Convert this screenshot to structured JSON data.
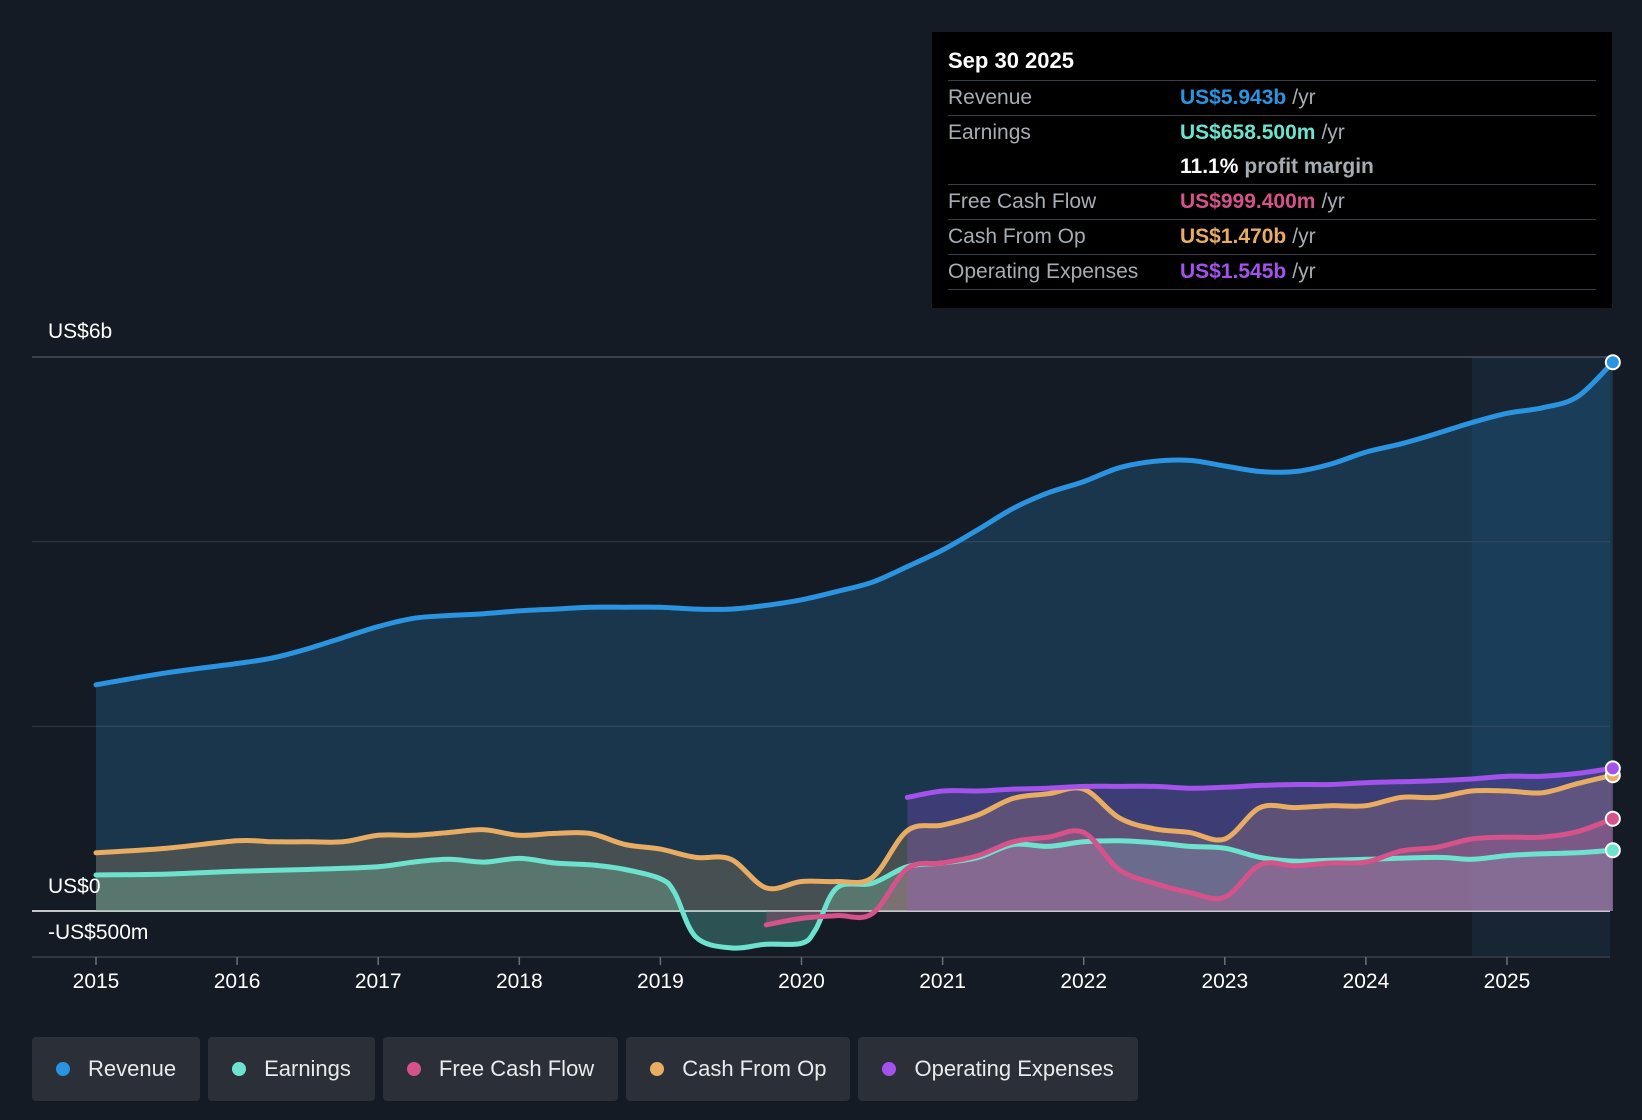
{
  "tooltip": {
    "date": "Sep 30 2025",
    "rows": [
      {
        "label": "Revenue",
        "value": "US$5.943b",
        "unit": "/yr",
        "color": "#2a94e0"
      },
      {
        "label": "Earnings",
        "value": "US$658.500m",
        "unit": "/yr",
        "color": "#6de3cf"
      },
      {
        "label": "",
        "value": "11.1%",
        "unit": "profit margin",
        "color": "#ffffff"
      },
      {
        "label": "Free Cash Flow",
        "value": "US$999.400m",
        "unit": "/yr",
        "color": "#d5528a"
      },
      {
        "label": "Cash From Op",
        "value": "US$1.470b",
        "unit": "/yr",
        "color": "#e8ac62"
      },
      {
        "label": "Operating Expenses",
        "value": "US$1.545b",
        "unit": "/yr",
        "color": "#a452ec"
      }
    ]
  },
  "legend": [
    {
      "label": "Revenue",
      "color": "#2a94e0"
    },
    {
      "label": "Earnings",
      "color": "#6de3cf"
    },
    {
      "label": "Free Cash Flow",
      "color": "#d5528a"
    },
    {
      "label": "Cash From Op",
      "color": "#e8ac62"
    },
    {
      "label": "Operating Expenses",
      "color": "#a452ec"
    }
  ],
  "chart_data": {
    "type": "line",
    "title": "",
    "xlabel": "",
    "ylabel": "",
    "ylim": [
      -500,
      6000
    ],
    "xlim": [
      2014.55,
      2025.75
    ],
    "y_tick_labels": [
      "US$6b",
      "US$0",
      "-US$500m"
    ],
    "x_ticks": [
      2015,
      2016,
      2017,
      2018,
      2019,
      2020,
      2021,
      2022,
      2023,
      2024,
      2025
    ],
    "x_tick_labels": [
      "2015",
      "2016",
      "2017",
      "2018",
      "2019",
      "2020",
      "2021",
      "2022",
      "2023",
      "2024",
      "2025"
    ],
    "highlight_from": 2024.75,
    "series": [
      {
        "name": "Revenue",
        "color": "#2a94e0",
        "x": [
          2015,
          2015.5,
          2016,
          2016.25,
          2016.5,
          2016.75,
          2017,
          2017.25,
          2017.5,
          2017.75,
          2018,
          2018.25,
          2018.5,
          2018.75,
          2019,
          2019.25,
          2019.5,
          2019.75,
          2020,
          2020.25,
          2020.5,
          2020.75,
          2021,
          2021.25,
          2021.5,
          2021.75,
          2022,
          2022.25,
          2022.5,
          2022.75,
          2023,
          2023.25,
          2023.5,
          2023.75,
          2024,
          2024.25,
          2024.5,
          2024.75,
          2025,
          2025.25,
          2025.5,
          2025.75
        ],
        "y": [
          2450,
          2580,
          2680,
          2740,
          2840,
          2960,
          3080,
          3170,
          3200,
          3220,
          3250,
          3270,
          3290,
          3290,
          3290,
          3270,
          3270,
          3310,
          3370,
          3460,
          3560,
          3730,
          3910,
          4130,
          4360,
          4530,
          4650,
          4800,
          4870,
          4880,
          4820,
          4760,
          4760,
          4840,
          4970,
          5060,
          5170,
          5290,
          5390,
          5450,
          5570,
          5943
        ]
      },
      {
        "name": "Earnings",
        "color": "#6de3cf",
        "x": [
          2015,
          2015.5,
          2016,
          2016.5,
          2017,
          2017.25,
          2017.5,
          2017.75,
          2018,
          2018.25,
          2018.5,
          2018.75,
          2019,
          2019.1,
          2019.25,
          2019.5,
          2019.75,
          2020,
          2020.1,
          2020.25,
          2020.5,
          2020.75,
          2021,
          2021.25,
          2021.5,
          2021.75,
          2022,
          2022.25,
          2022.5,
          2022.75,
          2023,
          2023.25,
          2023.5,
          2023.75,
          2024,
          2024.5,
          2024.75,
          2025,
          2025.25,
          2025.5,
          2025.75
        ],
        "y": [
          390,
          400,
          430,
          450,
          480,
          530,
          560,
          530,
          570,
          520,
          500,
          450,
          350,
          200,
          -280,
          -400,
          -360,
          -350,
          -200,
          250,
          300,
          480,
          520,
          580,
          720,
          700,
          750,
          760,
          740,
          700,
          680,
          580,
          540,
          550,
          560,
          580,
          560,
          600,
          620,
          630,
          658.5
        ]
      },
      {
        "name": "Free Cash Flow",
        "color": "#d5528a",
        "x": [
          2019.75,
          2020,
          2020.25,
          2020.5,
          2020.75,
          2021,
          2021.25,
          2021.5,
          2021.75,
          2022,
          2022.25,
          2022.5,
          2022.75,
          2023,
          2023.25,
          2023.5,
          2023.75,
          2024,
          2024.25,
          2024.5,
          2024.75,
          2025,
          2025.25,
          2025.5,
          2025.75
        ],
        "y": [
          -150,
          -80,
          -50,
          -30,
          460,
          520,
          600,
          750,
          800,
          850,
          450,
          300,
          200,
          150,
          500,
          490,
          520,
          530,
          650,
          690,
          780,
          800,
          800,
          860,
          999.4
        ]
      },
      {
        "name": "Cash From Op",
        "color": "#e8ac62",
        "x": [
          2015,
          2015.5,
          2016,
          2016.25,
          2016.5,
          2016.75,
          2017,
          2017.25,
          2017.5,
          2017.75,
          2018,
          2018.25,
          2018.5,
          2018.75,
          2019,
          2019.25,
          2019.5,
          2019.75,
          2020,
          2020.25,
          2020.5,
          2020.75,
          2021,
          2021.25,
          2021.5,
          2021.75,
          2022,
          2022.25,
          2022.5,
          2022.75,
          2023,
          2023.25,
          2023.5,
          2023.75,
          2024,
          2024.25,
          2024.5,
          2024.75,
          2025,
          2025.25,
          2025.5,
          2025.75
        ],
        "y": [
          630,
          680,
          760,
          750,
          750,
          750,
          820,
          820,
          850,
          880,
          820,
          840,
          840,
          720,
          670,
          580,
          560,
          250,
          320,
          320,
          360,
          870,
          930,
          1040,
          1220,
          1270,
          1320,
          1010,
          890,
          850,
          780,
          1120,
          1120,
          1140,
          1140,
          1230,
          1230,
          1300,
          1300,
          1280,
          1380,
          1470
        ]
      },
      {
        "name": "Operating Expenses",
        "color": "#a452ec",
        "x": [
          2020.75,
          2021,
          2021.25,
          2021.5,
          2021.75,
          2022,
          2022.25,
          2022.5,
          2022.75,
          2023,
          2023.25,
          2023.5,
          2023.75,
          2024,
          2024.25,
          2024.5,
          2024.75,
          2025,
          2025.25,
          2025.5,
          2025.75
        ],
        "y": [
          1230,
          1300,
          1300,
          1320,
          1330,
          1350,
          1350,
          1350,
          1330,
          1340,
          1360,
          1370,
          1370,
          1390,
          1400,
          1410,
          1430,
          1460,
          1460,
          1490,
          1545
        ]
      }
    ]
  }
}
